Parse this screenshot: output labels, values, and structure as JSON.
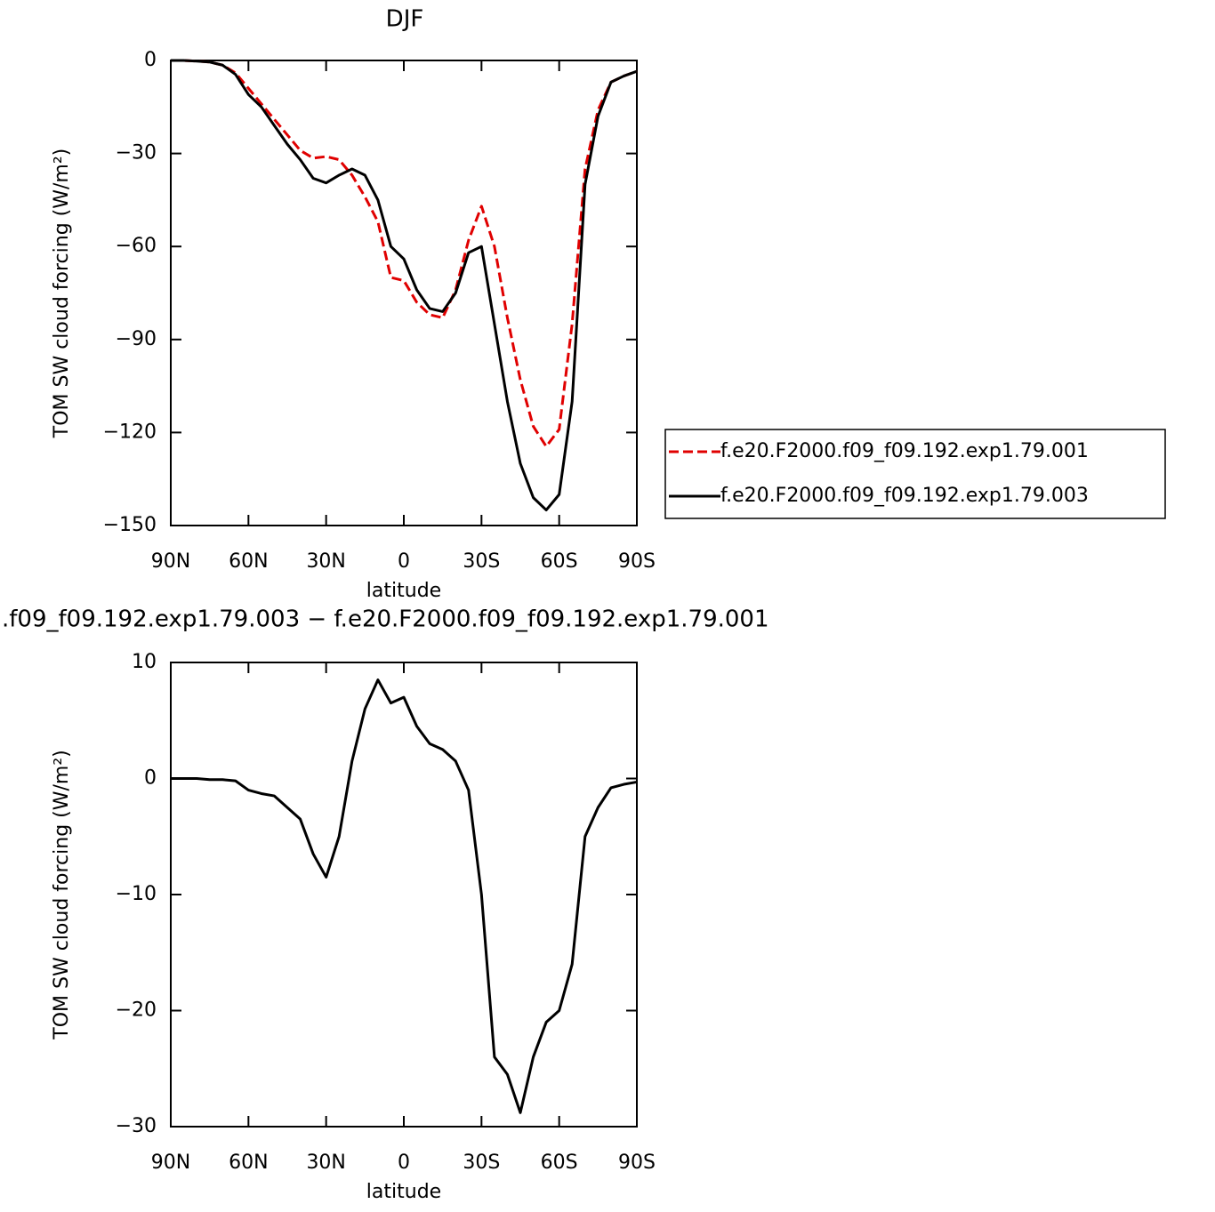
{
  "chart_data": [
    {
      "type": "line",
      "title": "DJF",
      "xlabel": "latitude",
      "ylabel": "TOM SW cloud forcing (W/m²)",
      "x": [
        90,
        85,
        80,
        75,
        70,
        65,
        60,
        55,
        50,
        45,
        40,
        35,
        30,
        25,
        20,
        15,
        10,
        5,
        0,
        -5,
        -10,
        -15,
        -20,
        -25,
        -30,
        -35,
        -40,
        -45,
        -50,
        -55,
        -60,
        -65,
        -70,
        -75,
        -80,
        -85,
        -90
      ],
      "series": [
        {
          "name": "f.e20.F2000.f09_f09.192.exp1.79.001",
          "color": "#e00000",
          "dash": true,
          "values": [
            0,
            0,
            -0.2,
            -0.5,
            -1.5,
            -4,
            -9,
            -14,
            -19,
            -24,
            -29,
            -31.5,
            -31,
            -32,
            -37,
            -44,
            -52,
            -70,
            -71,
            -78,
            -82,
            -83,
            -74,
            -58,
            -47,
            -60,
            -83,
            -103,
            -118,
            -124.5,
            -119,
            -85,
            -35,
            -16,
            -7,
            -5,
            -3.5
          ]
        },
        {
          "name": "f.e20.F2000.f09_f09.192.exp1.79.003",
          "color": "#000000",
          "dash": false,
          "values": [
            0,
            0,
            -0.2,
            -0.5,
            -1.5,
            -4.5,
            -11,
            -15,
            -21,
            -27,
            -32,
            -38,
            -39.5,
            -37,
            -35,
            -37,
            -45,
            -60,
            -64,
            -74,
            -80,
            -81,
            -75,
            -62,
            -60,
            -85,
            -110,
            -130,
            -141,
            -145,
            -140,
            -110,
            -40,
            -18,
            -7,
            -5,
            -3.5
          ]
        }
      ],
      "xlim": [
        90,
        -90
      ],
      "xticks": [
        {
          "value": 90,
          "label": "90N"
        },
        {
          "value": 60,
          "label": "60N"
        },
        {
          "value": 30,
          "label": "30N"
        },
        0,
        {
          "value": -30,
          "label": "30S"
        },
        {
          "value": -60,
          "label": "60S"
        },
        {
          "value": -90,
          "label": "90S"
        }
      ],
      "ylim": [
        -150,
        0
      ],
      "yticks": [
        0,
        {
          "value": -30,
          "label": "−30"
        },
        {
          "value": -60,
          "label": "−60"
        },
        {
          "value": -90,
          "label": "−90"
        },
        {
          "value": -120,
          "label": "−120"
        },
        {
          "value": -150,
          "label": "−150"
        }
      ],
      "legend": "right"
    },
    {
      "type": "line",
      "title": ".f09_f09.192.exp1.79.003 − f.e20.F2000.f09_f09.192.exp1.79.001",
      "xlabel": "latitude",
      "ylabel": "TOM SW cloud forcing (W/m²)",
      "x": [
        90,
        85,
        80,
        75,
        70,
        65,
        60,
        55,
        50,
        45,
        40,
        35,
        30,
        25,
        20,
        15,
        10,
        5,
        0,
        -5,
        -10,
        -15,
        -20,
        -25,
        -30,
        -35,
        -40,
        -45,
        -50,
        -55,
        -60,
        -65,
        -70,
        -75,
        -80,
        -85,
        -90
      ],
      "series": [
        {
          "color": "#000000",
          "dash": false,
          "values": [
            0,
            0,
            0,
            -0.1,
            -0.1,
            -0.2,
            -1,
            -1.3,
            -1.5,
            -2.5,
            -3.5,
            -6.5,
            -8.5,
            -5,
            1.5,
            6,
            8.5,
            6.5,
            7,
            4.5,
            3,
            2.5,
            1.5,
            -1,
            -10,
            -24,
            -25.5,
            -28.8,
            -24,
            -21,
            -20,
            -16,
            -5,
            -2.5,
            -0.8,
            -0.5,
            -0.3
          ]
        }
      ],
      "xlim": [
        90,
        -90
      ],
      "xticks": [
        {
          "value": 90,
          "label": "90N"
        },
        {
          "value": 60,
          "label": "60N"
        },
        {
          "value": 30,
          "label": "30N"
        },
        0,
        {
          "value": -30,
          "label": "30S"
        },
        {
          "value": -60,
          "label": "60S"
        },
        {
          "value": -90,
          "label": "90S"
        }
      ],
      "ylim": [
        -30,
        10
      ],
      "yticks": [
        10,
        0,
        {
          "value": -10,
          "label": "−10"
        },
        {
          "value": -20,
          "label": "−20"
        },
        {
          "value": -30,
          "label": "−30"
        }
      ]
    }
  ]
}
